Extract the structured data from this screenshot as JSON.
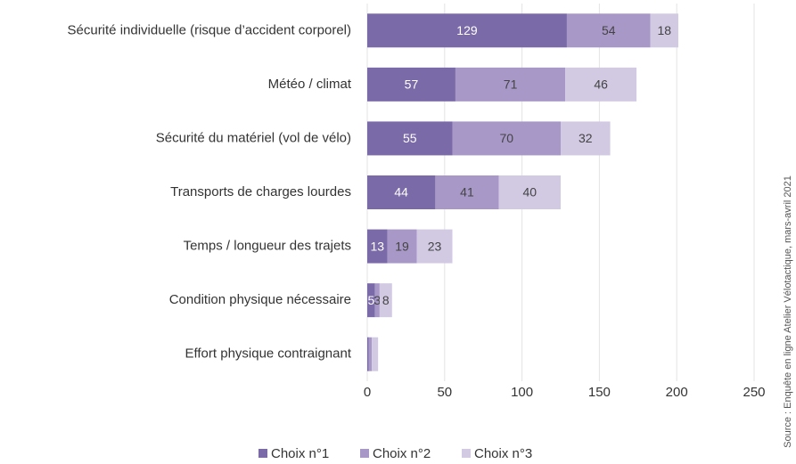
{
  "chart_data": {
    "type": "stacked-bar-horizontal",
    "categories": [
      "Sécurité individuelle (risque d’accident corporel)",
      "Météo / climat",
      "Sécurité du matériel (vol de vélo)",
      "Transports de charges lourdes",
      "Temps / longueur des trajets",
      "Condition physique nécessaire",
      "Effort physique contraignant"
    ],
    "series": [
      {
        "name": "Choix n°1",
        "color": "#7b6aa8",
        "values": [
          129,
          57,
          55,
          44,
          13,
          5,
          1
        ],
        "value_labels": [
          "129",
          "57",
          "55",
          "44",
          "13",
          "5",
          null
        ]
      },
      {
        "name": "Choix n°2",
        "color": "#a898c8",
        "values": [
          54,
          71,
          70,
          41,
          19,
          3,
          2
        ],
        "value_labels": [
          "54",
          "71",
          "70",
          "41",
          "19",
          "3",
          null
        ]
      },
      {
        "name": "Choix n°3",
        "color": "#d2c9e3",
        "values": [
          18,
          46,
          32,
          40,
          23,
          8,
          4
        ],
        "value_labels": [
          "18",
          "46",
          "32",
          "40",
          "23",
          "8",
          null
        ]
      }
    ],
    "xlim": [
      0,
      250
    ],
    "xticks": [
      0,
      50,
      100,
      150,
      200,
      250
    ],
    "grid": true,
    "source": "Source : Enquête en ligne Atelier Vélotactique, mars-avril 2021"
  }
}
